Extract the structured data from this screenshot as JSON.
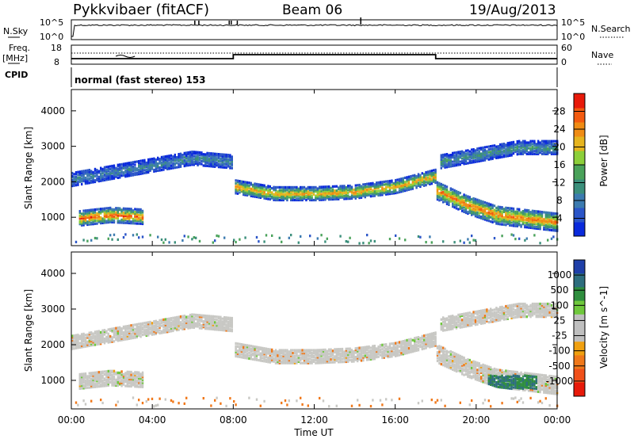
{
  "header": {
    "station": "Pykkvibaer (fitACF)",
    "beam": "Beam 06",
    "date": "19/Aug/2013"
  },
  "top_panels": {
    "nsky_label": "N.Sky",
    "nsky_ticks": [
      "10^5",
      "10^0"
    ],
    "nsearch_label": "N.Search",
    "nsearch_ticks": [
      "10^5",
      "10^0"
    ],
    "freq_label": "Freq.",
    "freq_unit": "[MHz]",
    "freq_ticks": [
      "18",
      "8"
    ],
    "nave_label": "Nave",
    "nave_ticks": [
      "60",
      "0"
    ],
    "cpid_label": "CPID",
    "cpid_text": "normal (fast stereo) 153"
  },
  "colors": {
    "power_scale": [
      "#0a2adc",
      "#2b55c8",
      "#3c7bb0",
      "#3b8f7b",
      "#4aa25a",
      "#8ccf3a",
      "#e6b41e",
      "#f08c14",
      "#f35a10",
      "#e81a0a"
    ],
    "velocity_scale": [
      "#1f3fa8",
      "#2e6e7e",
      "#2f8e3e",
      "#6fc83c",
      "#bfbfbf",
      "#bfbfbf",
      "#f0a010",
      "#f0781a",
      "#f0501a",
      "#e81a0a"
    ]
  },
  "chart_data": [
    {
      "type": "heatmap",
      "title": "Power",
      "ylabel": "Slant Range [km]",
      "ylim": [
        200,
        4600
      ],
      "yticks": [
        "1000",
        "2000",
        "3000",
        "4000"
      ],
      "xlim": [
        "00:00",
        "24:00"
      ],
      "colorbar_label": "Power [dB]",
      "colorbar_ticks": [
        "28",
        "24",
        "20",
        "16",
        "12",
        "8",
        "4"
      ],
      "colorbar_range": [
        0,
        32
      ],
      "features": [
        {
          "t_start": 0.0,
          "t_end": 7.9,
          "range_center": [
            2100,
            2300,
            2500,
            2700,
            2600
          ],
          "value": 10
        },
        {
          "t_start": 0.3,
          "t_end": 3.5,
          "range_center": [
            1000,
            1100,
            1050
          ],
          "value": 28
        },
        {
          "t_start": 8.0,
          "t_end": 18.0,
          "range_center": [
            1900,
            1700,
            1700,
            1750,
            1900,
            2200
          ],
          "value": 24
        },
        {
          "t_start": 18.0,
          "t_end": 24.0,
          "range_center": [
            1800,
            1400,
            1100,
            1000,
            900
          ],
          "value": 26
        },
        {
          "t_start": 18.2,
          "t_end": 24.0,
          "range_center": [
            2600,
            2800,
            3000,
            3000
          ],
          "value": 12
        }
      ]
    },
    {
      "type": "heatmap",
      "title": "Velocity",
      "ylabel": "Slant Range [km]",
      "ylim": [
        200,
        4600
      ],
      "yticks": [
        "1000",
        "2000",
        "3000",
        "4000"
      ],
      "xlabel": "Time UT",
      "xticks": [
        "00:00",
        "04:00",
        "08:00",
        "12:00",
        "16:00",
        "20:00",
        "00:00"
      ],
      "colorbar_label": "Velocity [m s^-1]",
      "colorbar_ticks": [
        "1000",
        "500",
        "100",
        "25",
        "-25",
        "-100",
        "-500",
        "-1000"
      ],
      "features": [
        {
          "t_start": 0.0,
          "t_end": 24.0,
          "value": 0
        },
        {
          "t_start": 20.5,
          "t_end": 23.0,
          "range_center": [
            900,
            1100
          ],
          "value": 800
        }
      ]
    }
  ]
}
